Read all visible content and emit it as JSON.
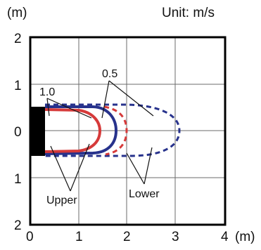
{
  "axes": {
    "y_unit_label": "(m)",
    "x_unit_label": "(m)",
    "unit_note": "Unit: m/s",
    "y_ticks": [
      "2",
      "1",
      "0",
      "1",
      "2"
    ],
    "x_ticks": [
      "0",
      "1",
      "2",
      "3",
      "4"
    ]
  },
  "annotations": {
    "contour_1_0": "1.0",
    "contour_0_5": "0.5",
    "upper": "Upper",
    "lower": "Lower"
  },
  "colors": {
    "upper_contour": "#d63a3a",
    "lower_contour": "#27328c",
    "grid": "#6b6b6b",
    "frame": "#000000",
    "source_block": "#000000"
  },
  "diagram": {
    "x_range": [
      0,
      4
    ],
    "y_range": [
      -2,
      2
    ],
    "grid": true,
    "contours": [
      {
        "surface": "upper",
        "velocity": 1.0,
        "style": "solid",
        "x_extent": 1.3
      },
      {
        "surface": "upper",
        "velocity": 0.5,
        "style": "dashed",
        "x_extent": 1.9
      },
      {
        "surface": "lower",
        "velocity": 1.0,
        "style": "solid",
        "x_extent": 1.75
      },
      {
        "surface": "lower",
        "velocity": 0.5,
        "style": "dashed",
        "x_extent": 3.05
      }
    ]
  }
}
